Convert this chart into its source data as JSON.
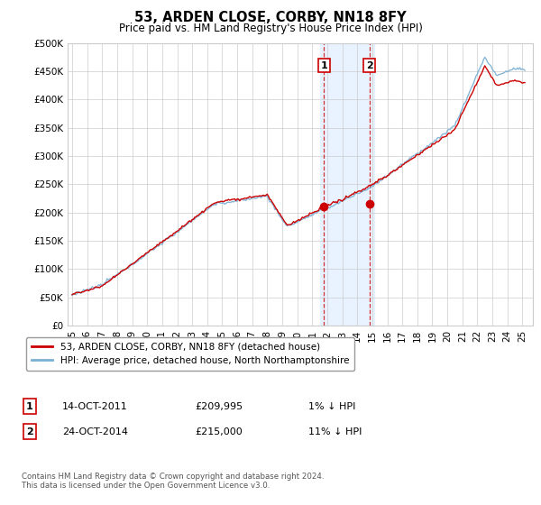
{
  "title": "53, ARDEN CLOSE, CORBY, NN18 8FY",
  "subtitle": "Price paid vs. HM Land Registry's House Price Index (HPI)",
  "ylabel_ticks": [
    "£0",
    "£50K",
    "£100K",
    "£150K",
    "£200K",
    "£250K",
    "£300K",
    "£350K",
    "£400K",
    "£450K",
    "£500K"
  ],
  "ytick_values": [
    0,
    50000,
    100000,
    150000,
    200000,
    250000,
    300000,
    350000,
    400000,
    450000,
    500000
  ],
  "ylim": [
    0,
    500000
  ],
  "xlim_start": 1994.7,
  "xlim_end": 2025.7,
  "hpi_color": "#7ab0d4",
  "price_color": "#cc0000",
  "sale1_x": 2011.79,
  "sale1_y": 209995,
  "sale2_x": 2014.81,
  "sale2_y": 215000,
  "shade_xmin": 2011.5,
  "shade_xmax": 2015.1,
  "legend_label1": "53, ARDEN CLOSE, CORBY, NN18 8FY (detached house)",
  "legend_label2": "HPI: Average price, detached house, North Northamptonshire",
  "table_row1": [
    "1",
    "14-OCT-2011",
    "£209,995",
    "1% ↓ HPI"
  ],
  "table_row2": [
    "2",
    "24-OCT-2014",
    "£215,000",
    "11% ↓ HPI"
  ],
  "footnote": "Contains HM Land Registry data © Crown copyright and database right 2024.\nThis data is licensed under the Open Government Licence v3.0.",
  "background_color": "#ffffff",
  "plot_bg_color": "#ffffff",
  "grid_color": "#cccccc"
}
